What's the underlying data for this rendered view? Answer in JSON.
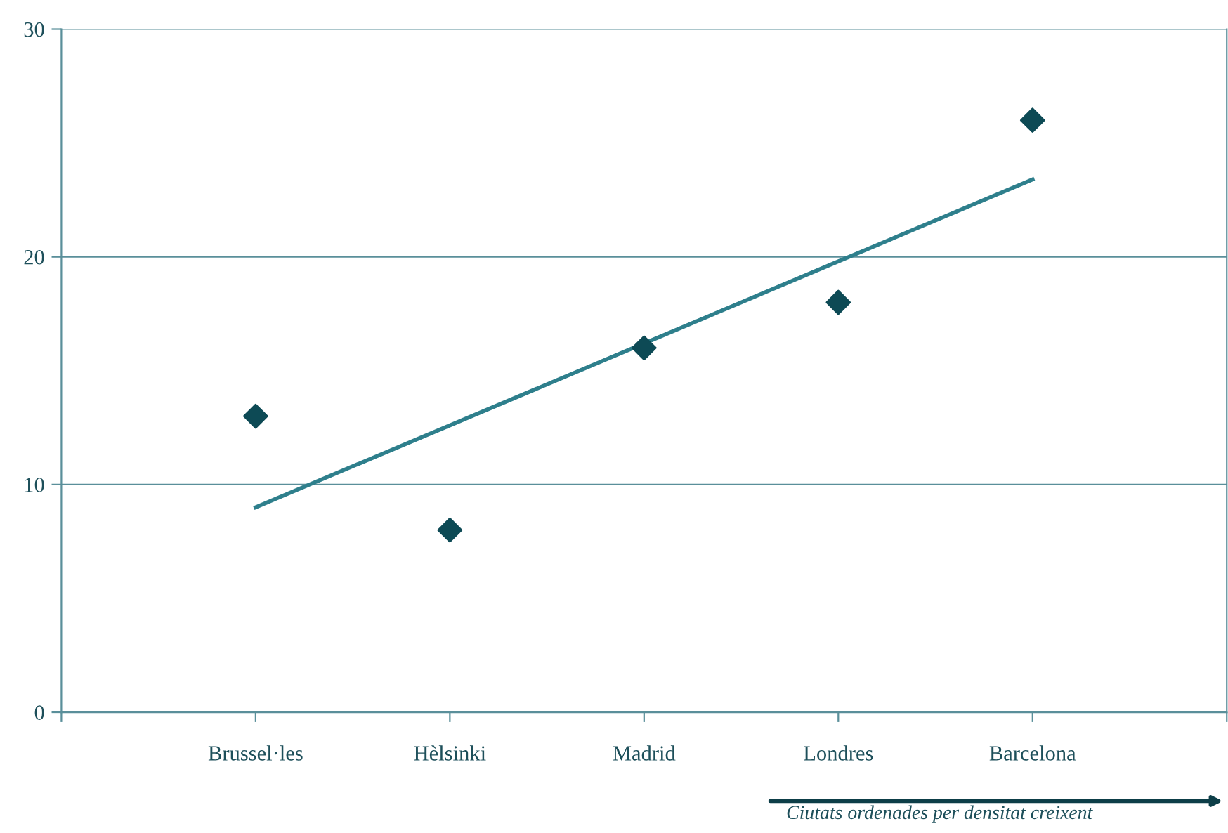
{
  "chart_data": {
    "type": "scatter",
    "categories": [
      null,
      "Brussel·les",
      "Hèlsinki",
      "Madrid",
      "Londres",
      "Barcelona",
      null
    ],
    "series": [
      {
        "color": "#0d4a55",
        "marker": "diamond",
        "values": [
          null,
          13,
          8,
          16,
          18,
          26,
          null
        ]
      },
      {
        "type": "line",
        "color": "#2e7f8c",
        "line_style": "solid",
        "values": [
          null,
          9.0,
          12.6,
          16.2,
          19.8,
          23.4,
          null
        ]
      }
    ],
    "ylim": [
      0,
      30
    ],
    "yticks": [
      0,
      10,
      20,
      30
    ],
    "grid": "y",
    "annotations": [
      "Ciutats ordenades per densitat creixent"
    ]
  }
}
